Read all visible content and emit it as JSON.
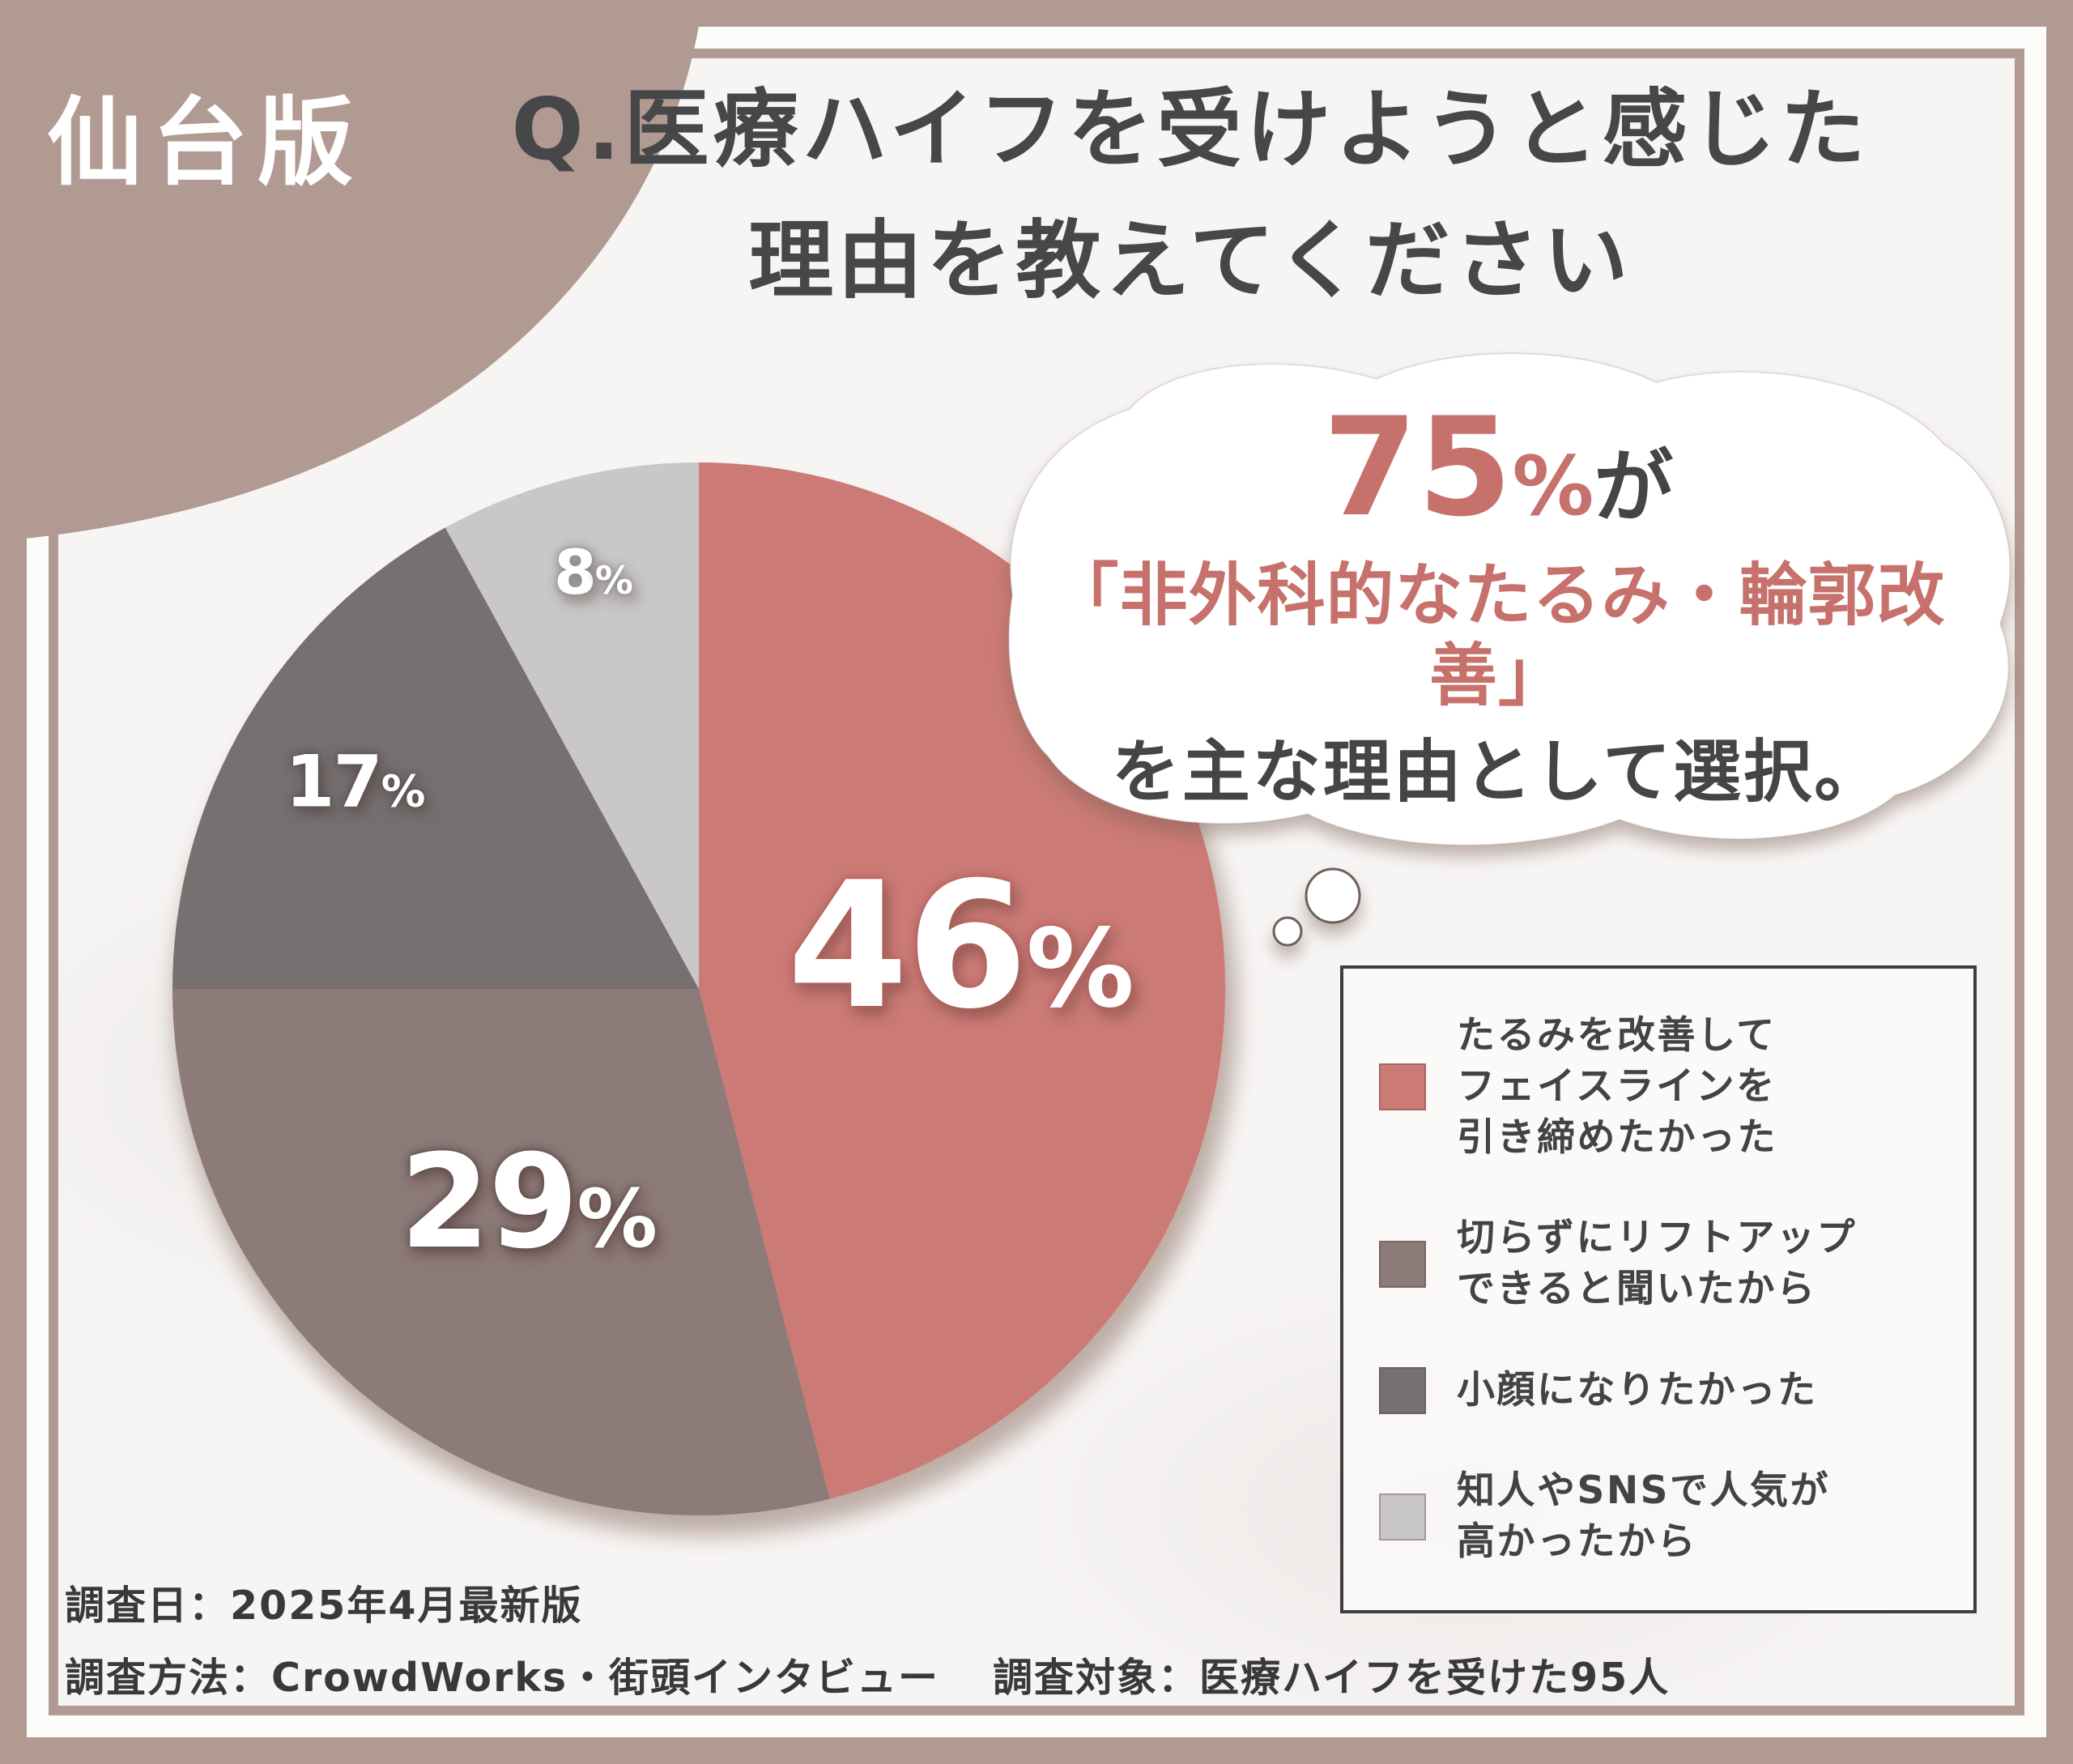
{
  "badge": {
    "label": "仙台版"
  },
  "title": {
    "line1": "Q.医療ハイフを受けようと感じた",
    "line2": "理由を教えてください"
  },
  "bubble": {
    "highlight_value": "75%",
    "highlight_suffix": "が",
    "line2": "「非外科的なたるみ・輪郭改善」",
    "line3": "を主な理由として選択。"
  },
  "chart_data": {
    "type": "pie",
    "title": "医療ハイフを受けようと感じた理由",
    "categories": [
      "たるみを改善してフェイスラインを引き締めたかった",
      "切らずにリフトアップできると聞いたから",
      "小顔になりたかった",
      "知人やSNSで人気が高かったから"
    ],
    "values": [
      46,
      29,
      17,
      8
    ],
    "unit": "%",
    "labels": [
      "46%",
      "29%",
      "17%",
      "8%"
    ],
    "colors": [
      "#cb7a75",
      "#8d7b79",
      "#767071",
      "#c9c7c7"
    ],
    "start_angle_deg": 0,
    "direction": "clockwise",
    "legend_position": "right"
  },
  "legend": {
    "items": [
      {
        "label": "たるみを改善して\nフェイスラインを\n引き締めたかった"
      },
      {
        "label": "切らずにリフトアップ\nできると聞いたから"
      },
      {
        "label": "小顔になりたかった"
      },
      {
        "label": "知人やSNSで人気が\n高かったから"
      }
    ]
  },
  "footer": {
    "line1": "調査日：2025年4月最新版",
    "method": "調査方法：CrowdWorks・街頭インタビュー",
    "target": "調査対象：医療ハイフを受けた95人"
  },
  "colors": {
    "frame_brown": "#b19a92",
    "content_bg": "#f7f5f4",
    "title_text": "#47474a",
    "accent_salmon": "#c7716c",
    "dark_text": "#454547",
    "footer_text": "#39393b"
  }
}
